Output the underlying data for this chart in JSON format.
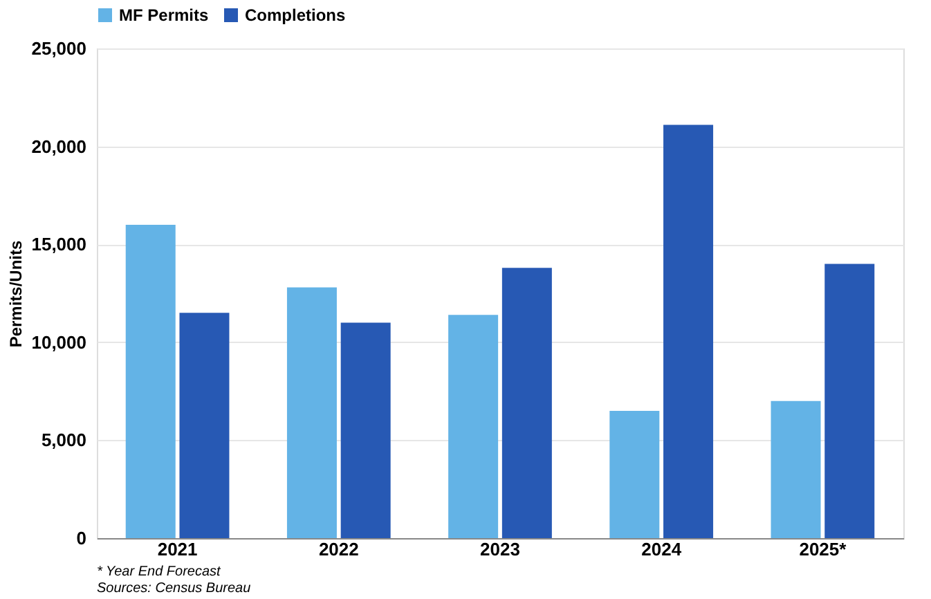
{
  "chart_data": {
    "type": "bar",
    "ylabel": "Permits/Units",
    "categories": [
      "2021",
      "2022",
      "2023",
      "2024",
      "2025*"
    ],
    "series": [
      {
        "name": "MF Permits",
        "color": "#63b3e6",
        "values": [
          16000,
          12800,
          11400,
          6500,
          7000
        ]
      },
      {
        "name": "Completions",
        "color": "#2759b4",
        "values": [
          11500,
          11000,
          13800,
          21100,
          14000
        ]
      }
    ],
    "ylim": [
      0,
      25000
    ],
    "yticks": [
      0,
      {
        "value": 5000,
        "label": "5,000"
      },
      {
        "value": 10000,
        "label": "10,000"
      },
      {
        "value": 15000,
        "label": "15,000"
      },
      {
        "value": 20000,
        "label": "20,000"
      },
      {
        "value": 25000,
        "label": "25,000"
      }
    ],
    "grid": "y",
    "legend": "top",
    "annotations": [
      "* Year End Forecast",
      "Sources: Census Bureau"
    ]
  }
}
